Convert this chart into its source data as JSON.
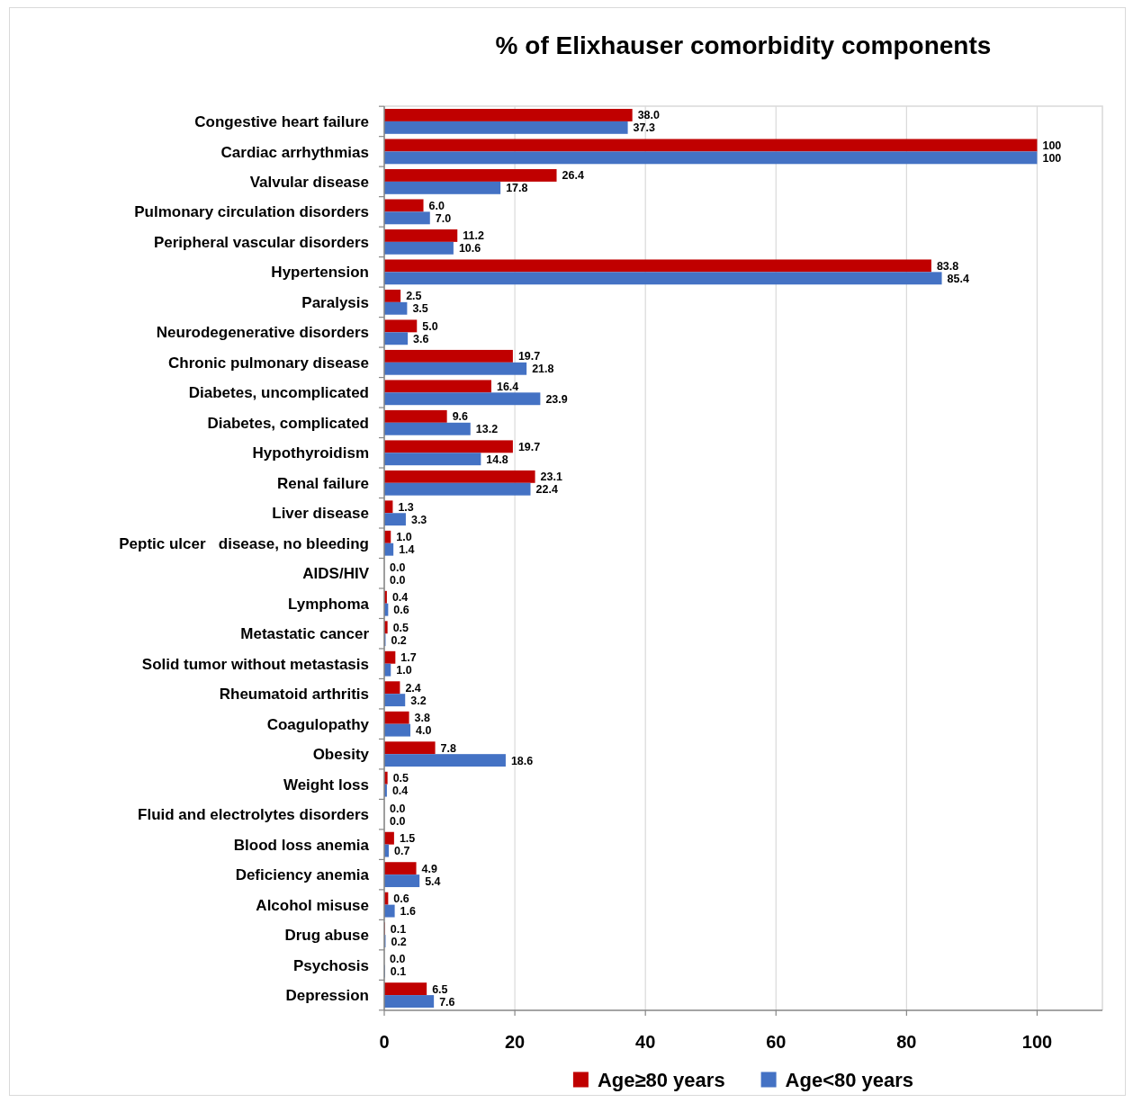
{
  "chart_data": {
    "type": "bar",
    "orientation": "horizontal",
    "title": "% of Elixhauser comorbidity components",
    "categories": [
      "Congestive heart failure",
      "Cardiac arrhythmias",
      "Valvular disease",
      "Pulmonary circulation disorders",
      "Peripheral vascular disorders",
      "Hypertension",
      "Paralysis",
      "Neurodegenerative disorders",
      "Chronic pulmonary disease",
      "Diabetes, uncomplicated",
      "Diabetes, complicated",
      "Hypothyroidism",
      "Renal failure",
      "Liver disease",
      "Peptic ulcer   disease, no bleeding",
      "AIDS/HIV",
      "Lymphoma",
      "Metastatic cancer",
      "Solid tumor without metastasis",
      "Rheumatoid arthritis",
      "Coagulopathy",
      "Obesity",
      "Weight loss",
      "Fluid and electrolytes disorders",
      "Blood loss anemia",
      "Deficiency anemia",
      "Alcohol misuse",
      "Drug abuse",
      "Psychosis",
      "Depression"
    ],
    "series": [
      {
        "name": "Age≥80 years",
        "color": "#c00000",
        "values": [
          38.0,
          100,
          26.4,
          6.0,
          11.2,
          83.8,
          2.5,
          5.0,
          19.7,
          16.4,
          9.6,
          19.7,
          23.1,
          1.3,
          1.0,
          0.0,
          0.4,
          0.5,
          1.7,
          2.4,
          3.8,
          7.8,
          0.5,
          0.0,
          1.5,
          4.9,
          0.6,
          0.1,
          0.0,
          6.5
        ],
        "value_labels": [
          "38.0",
          "100",
          "26.4",
          "6.0",
          "11.2",
          "83.8",
          "2.5",
          "5.0",
          "19.7",
          "16.4",
          "9.6",
          "19.7",
          "23.1",
          "1.3",
          "1.0",
          "0.0",
          "0.4",
          "0.5",
          "1.7",
          "2.4",
          "3.8",
          "7.8",
          "0.5",
          "0.0",
          "1.5",
          "4.9",
          "0.6",
          "0.1",
          "0.0",
          "6.5"
        ]
      },
      {
        "name": "Age<80 years",
        "color": "#4472c4",
        "values": [
          37.3,
          100,
          17.8,
          7.0,
          10.6,
          85.4,
          3.5,
          3.6,
          21.8,
          23.9,
          13.2,
          14.8,
          22.4,
          3.3,
          1.4,
          0.0,
          0.6,
          0.2,
          1.0,
          3.2,
          4.0,
          18.6,
          0.4,
          0.0,
          0.7,
          5.4,
          1.6,
          0.2,
          0.1,
          7.6
        ],
        "value_labels": [
          "37.3",
          "100",
          "17.8",
          "7.0",
          "10.6",
          "85.4",
          "3.5",
          "3.6",
          "21.8",
          "23.9",
          "13.2",
          "14.8",
          "22.4",
          "3.3",
          "1.4",
          "0.0",
          "0.6",
          "0.2",
          "1.0",
          "3.2",
          "4.0",
          "18.6",
          "0.4",
          "0.0",
          "0.7",
          "5.4",
          "1.6",
          "0.2",
          "0.1",
          "7.6"
        ]
      }
    ],
    "xlim": [
      0,
      110
    ],
    "xticks": [
      0,
      20,
      40,
      60,
      80,
      100
    ],
    "grid": "x",
    "legend": "bottom"
  }
}
